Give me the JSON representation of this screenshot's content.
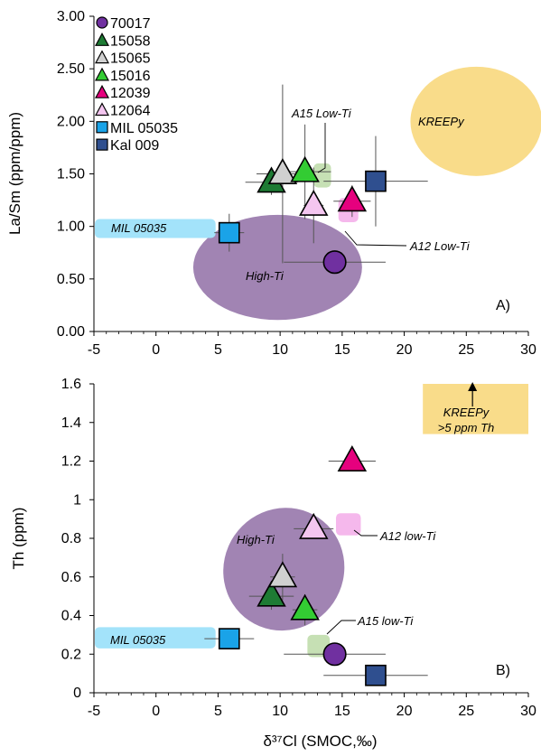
{
  "chart_data": [
    {
      "type": "scatter",
      "panel_label": "A)",
      "xlim": [
        -5,
        30
      ],
      "ylim": [
        0,
        3
      ],
      "xticks": [
        "-5",
        "0",
        "5",
        "10",
        "15",
        "20",
        "25",
        "30"
      ],
      "yticks": [
        "0.00",
        "0.50",
        "1.00",
        "1.50",
        "2.00",
        "2.50",
        "3.00"
      ],
      "xlabel": "",
      "ylabel": "La/Sm (ppm/ppm)",
      "legend_placement": "top-left",
      "legend": [
        {
          "name": "70017",
          "shape": "circle",
          "color": "#7030a0"
        },
        {
          "name": "15058",
          "shape": "triangle",
          "color": "#1e7b34"
        },
        {
          "name": "15065",
          "shape": "triangle",
          "color": "#d0d0d0"
        },
        {
          "name": "15016",
          "shape": "triangle",
          "color": "#33cc33"
        },
        {
          "name": "12039",
          "shape": "triangle",
          "color": "#e6007e"
        },
        {
          "name": "12064",
          "shape": "triangle",
          "color": "#f4c6f0"
        },
        {
          "name": "MIL 05035",
          "shape": "square",
          "color": "#1aa3e8"
        },
        {
          "name": "Kal 009",
          "shape": "square",
          "color": "#2f4f8f"
        }
      ],
      "fields": [
        {
          "label": "KREEPy",
          "shape": "ellipse",
          "cx": 25.8,
          "cy": 2.0,
          "rx": 5.3,
          "ry": 0.52,
          "color": "#f9dc8a"
        },
        {
          "label": "High-Ti",
          "shape": "ellipse",
          "cx": 9.8,
          "cy": 0.61,
          "rx": 6.8,
          "ry": 0.5,
          "color": "#a184b3"
        },
        {
          "label": "MIL 05035",
          "shape": "rect",
          "x0": -5,
          "x1": 4.8,
          "y0": 0.89,
          "y1": 1.07,
          "color": "#a3e3fa"
        },
        {
          "label": "A15 Low-Ti",
          "shape": "rect",
          "x0": 12.7,
          "x1": 14.1,
          "y0": 1.37,
          "y1": 1.6,
          "color": "#c6e0b4"
        },
        {
          "label": "A12 Low-Ti",
          "shape": "rect",
          "x0": 14.7,
          "x1": 16.3,
          "y0": 1.04,
          "y1": 1.27,
          "color": "#f5b8ec"
        }
      ],
      "points": [
        {
          "sample": "70017",
          "x": 14.4,
          "y": 0.66,
          "xerr": 4.1,
          "yerr": 0
        },
        {
          "sample": "15058",
          "x": 9.3,
          "y": 1.42,
          "xerr": 2.1,
          "yerr": 0.12
        },
        {
          "sample": "15065",
          "x": 10.2,
          "y": 1.5,
          "xerr": 2.1,
          "yerr": 0.85
        },
        {
          "sample": "15016",
          "x": 12.0,
          "y": 1.52,
          "xerr": 2.1,
          "yerr": 0.45
        },
        {
          "sample": "12039",
          "x": 15.8,
          "y": 1.24,
          "xerr": 1.5,
          "yerr": 0.15
        },
        {
          "sample": "12064",
          "x": 12.7,
          "y": 1.2,
          "xerr": 0.8,
          "yerr": 0.36
        },
        {
          "sample": "MIL 05035",
          "x": 5.9,
          "y": 0.94,
          "xerr": 1.2,
          "yerr": 0.18
        },
        {
          "sample": "Kal 009",
          "x": 17.7,
          "y": 1.43,
          "xerr": 4.2,
          "yerr": 0.43
        }
      ],
      "annotations": [
        "KREEPy",
        "High-Ti",
        "MIL 05035",
        "A15 Low-Ti",
        "A12 Low-Ti"
      ]
    },
    {
      "type": "scatter",
      "panel_label": "B)",
      "xlim": [
        -5,
        30
      ],
      "ylim": [
        0,
        1.6
      ],
      "xticks": [
        "-5",
        "0",
        "5",
        "10",
        "15",
        "20",
        "25",
        "30"
      ],
      "yticks": [
        "0",
        "0.2",
        "0.4",
        "0.6",
        "0.8",
        "1",
        "1.2",
        "1.4",
        "1.6"
      ],
      "xlabel": "δ³⁷Cl (SMOC,‰)",
      "ylabel": "Th (ppm)",
      "fields": [
        {
          "label": "KREEPy",
          "label2": ">5 ppm Th",
          "shape": "rect",
          "x0": 21.5,
          "x1": 30,
          "y0": 1.34,
          "y1": 1.6,
          "color": "#f9dc8a"
        },
        {
          "label": "High-Ti",
          "shape": "ellipse",
          "cx": 10.3,
          "cy": 0.64,
          "rx": 5.0,
          "ry": 0.31,
          "rotate": -56,
          "color": "#a184b3"
        },
        {
          "label": "MIL 05035",
          "shape": "rect",
          "x0": -5,
          "x1": 4.8,
          "y0": 0.23,
          "y1": 0.34,
          "color": "#a3e3fa"
        },
        {
          "label": "A15 low-Ti",
          "shape": "rect",
          "x0": 12.2,
          "x1": 14.0,
          "y0": 0.185,
          "y1": 0.3,
          "color": "#c6e0b4"
        },
        {
          "label": "A12 low-Ti",
          "shape": "rect",
          "x0": 14.5,
          "x1": 16.5,
          "y0": 0.815,
          "y1": 0.93,
          "color": "#f5b8ec"
        }
      ],
      "kreepy_arrow": {
        "x": 25.5,
        "y": 1.52
      },
      "points": [
        {
          "sample": "70017",
          "x": 14.4,
          "y": 0.2,
          "xerr": 4.1,
          "yerr": 0
        },
        {
          "sample": "15058",
          "x": 9.3,
          "y": 0.5,
          "xerr": 1.8,
          "yerr": 0.07
        },
        {
          "sample": "15065",
          "x": 10.2,
          "y": 0.6,
          "xerr": 1.0,
          "yerr": 0.12
        },
        {
          "sample": "15016",
          "x": 12.0,
          "y": 0.43,
          "xerr": 1.0,
          "yerr": 0.08
        },
        {
          "sample": "12039",
          "x": 15.8,
          "y": 1.2,
          "xerr": 1.9,
          "yerr": 0
        },
        {
          "sample": "12064",
          "x": 12.7,
          "y": 0.85,
          "xerr": 1.6,
          "yerr": 0
        },
        {
          "sample": "MIL 05035",
          "x": 5.9,
          "y": 0.28,
          "xerr": 2.0,
          "yerr": 0
        },
        {
          "sample": "Kal 009",
          "x": 17.7,
          "y": 0.09,
          "xerr": 4.2,
          "yerr": 0
        }
      ],
      "annotations": [
        "KREEPy",
        ">5 ppm Th",
        "High-Ti",
        "MIL 05035",
        "A15 low-Ti",
        "A12 low-Ti"
      ]
    }
  ]
}
